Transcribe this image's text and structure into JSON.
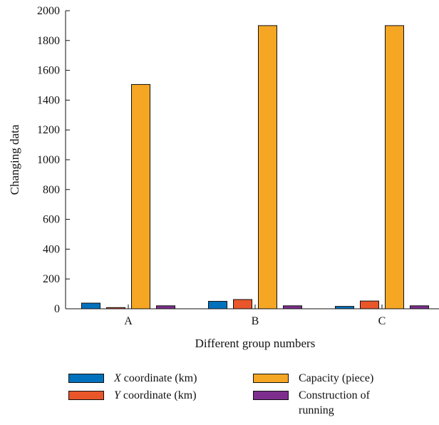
{
  "chart_data": {
    "type": "bar",
    "xlabel": "Different group numbers",
    "ylabel": "Changing data",
    "categories": [
      "A",
      "B",
      "C"
    ],
    "ylim": [
      0,
      2000
    ],
    "yticks": [
      0,
      200,
      400,
      600,
      800,
      1000,
      1200,
      1400,
      1600,
      1800,
      2000
    ],
    "grid": false,
    "legend_position": "bottom",
    "series": [
      {
        "name": "X coordinate (km)",
        "italic_prefix": "X",
        "rest": " coordinate (km)",
        "color": "#0072bd",
        "values": [
          38,
          50,
          16
        ]
      },
      {
        "name": "Y coordinate (km)",
        "italic_prefix": "Y",
        "rest": " coordinate (km)",
        "color": "#e8562a",
        "values": [
          8,
          62,
          52
        ]
      },
      {
        "name": "Capacity (piece)",
        "italic_prefix": "",
        "rest": "Capacity (piece)",
        "color": "#f5a623",
        "values": [
          1505,
          1900,
          1900
        ]
      },
      {
        "name": "Construction of running",
        "italic_prefix": "",
        "rest": "Construction of running",
        "color": "#7e2f8e",
        "values": [
          20,
          20,
          20
        ]
      }
    ]
  }
}
